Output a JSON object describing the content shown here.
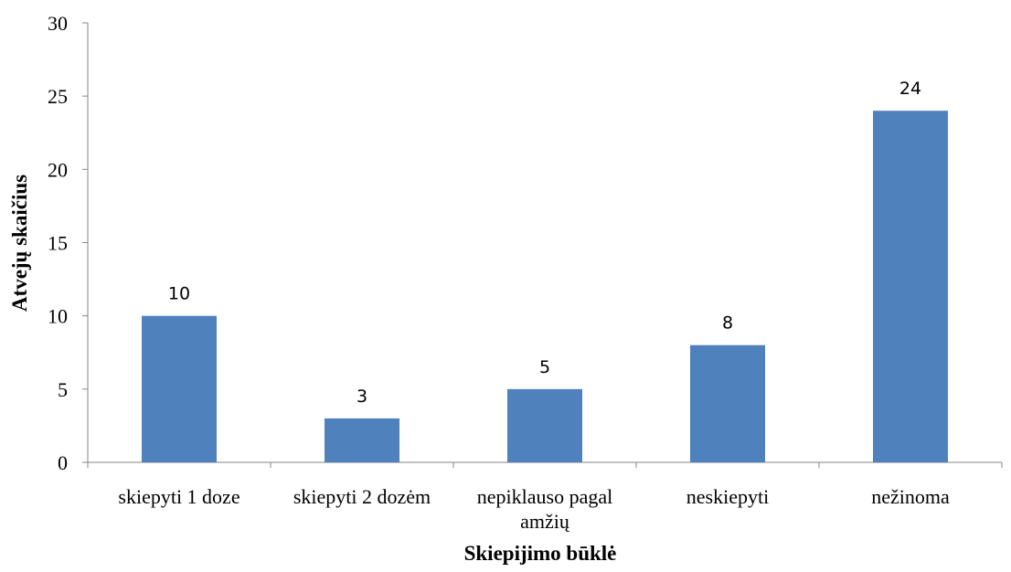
{
  "chart_data": {
    "type": "bar",
    "categories": [
      [
        "skiepyti 1 doze"
      ],
      [
        "skiepyti 2 dozėm"
      ],
      [
        "nepiklauso pagal",
        "amžių"
      ],
      [
        "neskiepyti"
      ],
      [
        "nežinoma"
      ]
    ],
    "values": [
      10,
      3,
      5,
      8,
      24
    ],
    "data_labels": [
      "10",
      "3",
      "5",
      "8",
      "24"
    ],
    "xlabel": "Skiepijimo būklė",
    "ylabel": "Atvejų skaičius",
    "ylim": [
      0,
      30
    ],
    "yticks": [
      0,
      5,
      10,
      15,
      20,
      25,
      30
    ],
    "bar_color": "#4F81BD",
    "grid": false,
    "legend": "none"
  }
}
